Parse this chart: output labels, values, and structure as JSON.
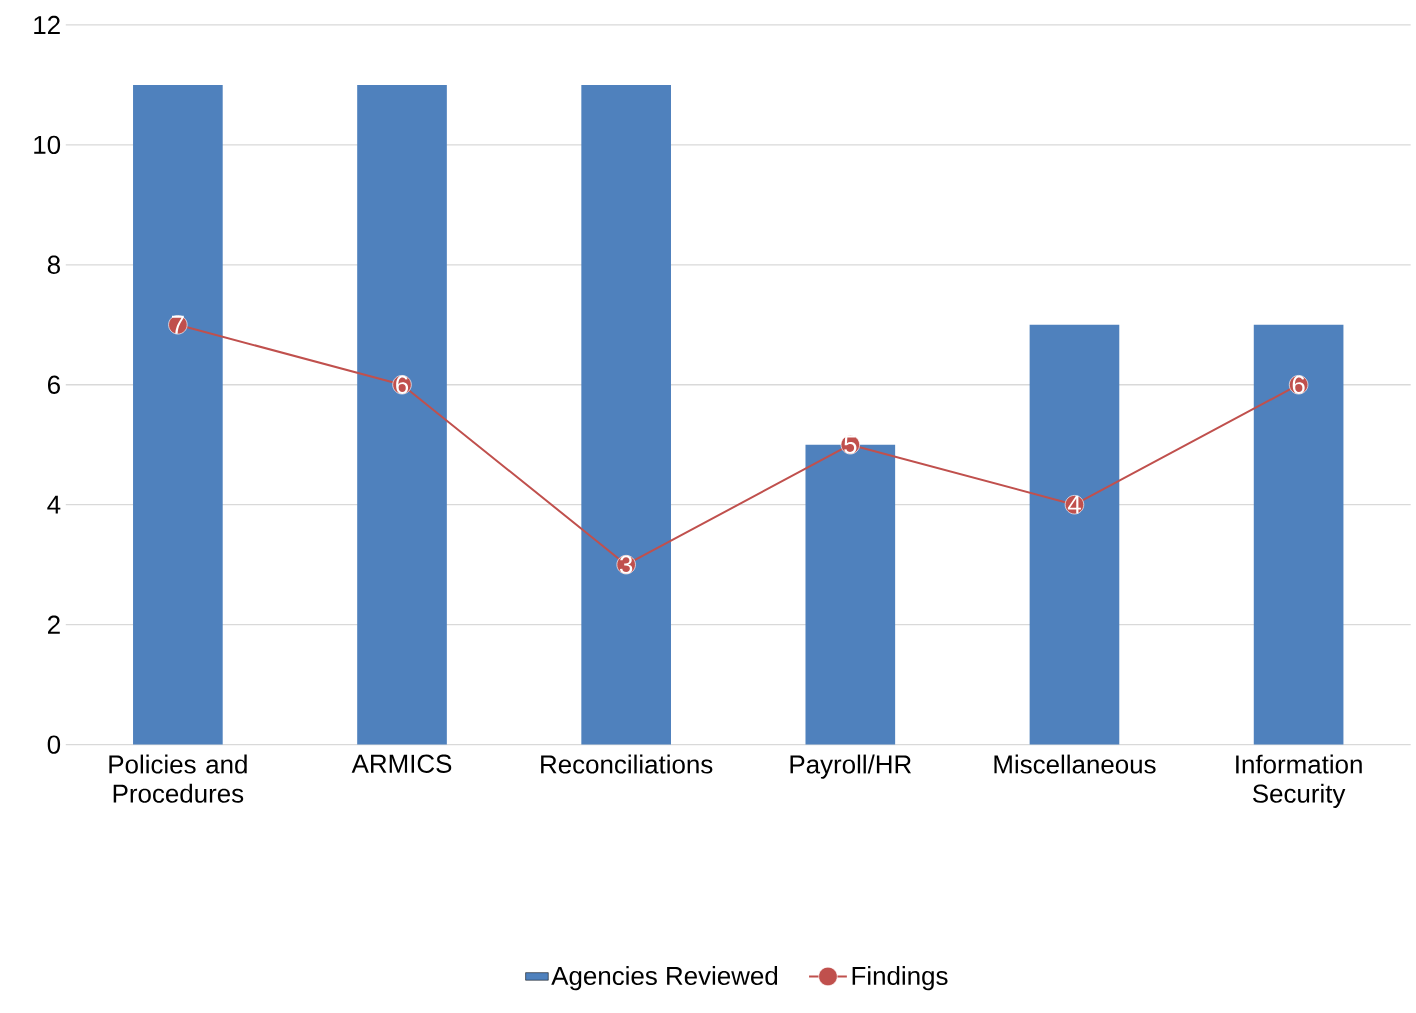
{
  "chart_data": {
    "type": "bar",
    "categories": [
      "Policies and Procedures",
      "ARMICS",
      "Reconciliations",
      "Payroll/HR",
      "Miscellaneous",
      "Information Security"
    ],
    "series": [
      {
        "name": "Agencies Reviewed",
        "color": "#4f81bd",
        "values": [
          11,
          11,
          11,
          5,
          7,
          7
        ]
      },
      {
        "name": "Findings",
        "type": "line",
        "color": "#c0504d",
        "marker": "circle",
        "values": [
          7,
          6,
          3,
          5,
          4,
          6
        ],
        "value_labels": [
          "7",
          "6",
          "3",
          "5",
          "4",
          "6"
        ]
      }
    ],
    "ylim": [
      0,
      12
    ],
    "yticks": [
      0,
      2,
      4,
      6,
      8,
      10,
      12
    ],
    "grid": "y",
    "legend": "bottom"
  }
}
